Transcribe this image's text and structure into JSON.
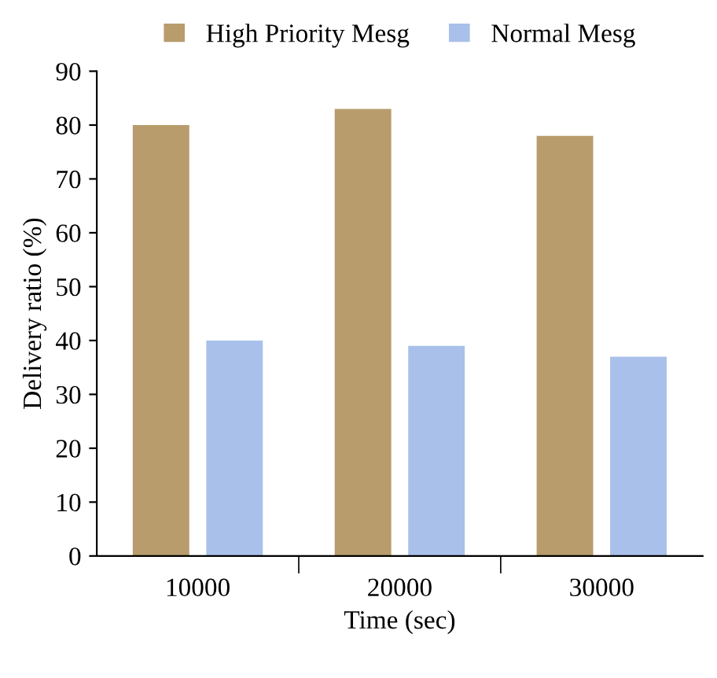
{
  "chart_data": {
    "type": "bar",
    "xlabel": "Time (sec)",
    "ylabel": "Delivery ratio (%)",
    "categories": [
      "10000",
      "20000",
      "30000"
    ],
    "series": [
      {
        "name": "High Priority Mesg",
        "color": "#b89c6c",
        "values": [
          80,
          83,
          78
        ]
      },
      {
        "name": "Normal Mesg",
        "color": "#a9c0ea",
        "values": [
          40,
          39,
          37
        ]
      }
    ],
    "ylim": [
      0,
      90
    ],
    "yticks": [
      0,
      10,
      20,
      30,
      40,
      50,
      60,
      70,
      80,
      90
    ],
    "grid": false,
    "legend": "top"
  }
}
